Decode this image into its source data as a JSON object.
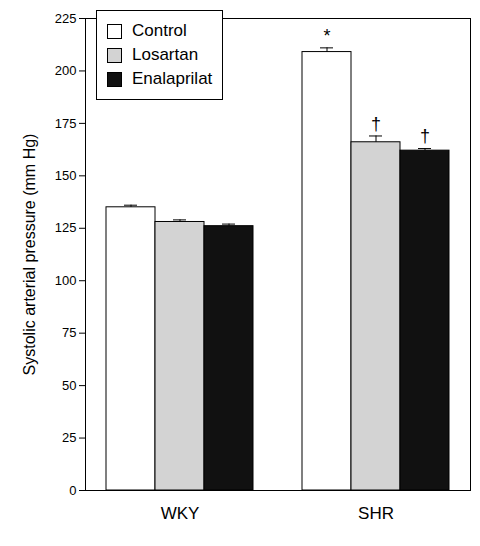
{
  "chart_data": {
    "type": "bar",
    "categories": [
      "WKY",
      "SHR"
    ],
    "series": [
      {
        "name": "Control",
        "color": "#ffffff",
        "values": [
          135,
          209
        ],
        "errors": [
          1,
          2
        ]
      },
      {
        "name": "Losartan",
        "color": "#d3d3d3",
        "values": [
          128,
          166
        ],
        "errors": [
          1,
          3
        ]
      },
      {
        "name": "Enalaprilat",
        "color": "#111111",
        "values": [
          126,
          162
        ],
        "errors": [
          1,
          1
        ]
      }
    ],
    "ylabel": "Systolic arterial pressure (mm Hg)",
    "ylim": [
      0,
      225
    ],
    "yticks": [
      0,
      25,
      50,
      75,
      100,
      125,
      150,
      175,
      200,
      225
    ],
    "legend": "top-left",
    "annotations": [
      {
        "text": "*",
        "category": "SHR",
        "series": "Control"
      },
      {
        "text": "†",
        "category": "SHR",
        "series": "Losartan"
      },
      {
        "text": "†",
        "category": "SHR",
        "series": "Enalaprilat"
      }
    ]
  }
}
